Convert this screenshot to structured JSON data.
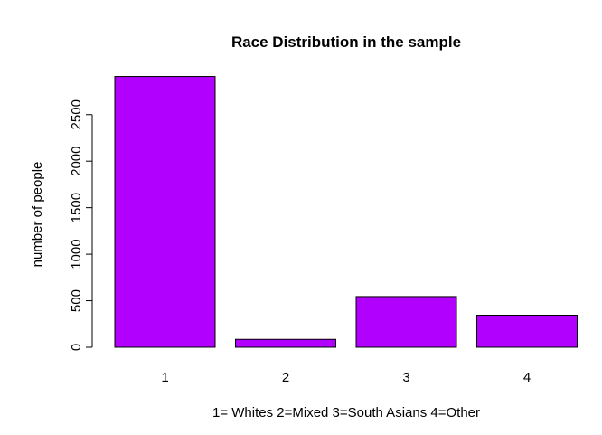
{
  "chart_data": {
    "type": "bar",
    "title": "Race Distribution in the sample",
    "xlabel": "1= Whites 2=Mixed 3=South Asians 4=Other",
    "ylabel": "number of people",
    "categories": [
      "1",
      "2",
      "3",
      "4"
    ],
    "values": [
      2910,
      85,
      545,
      345
    ],
    "yticks": [
      0,
      500,
      1000,
      1500,
      2000,
      2500
    ],
    "ylim": [
      0,
      3000
    ],
    "grid": false,
    "legend": "none",
    "bar_color": "#b200ff"
  }
}
